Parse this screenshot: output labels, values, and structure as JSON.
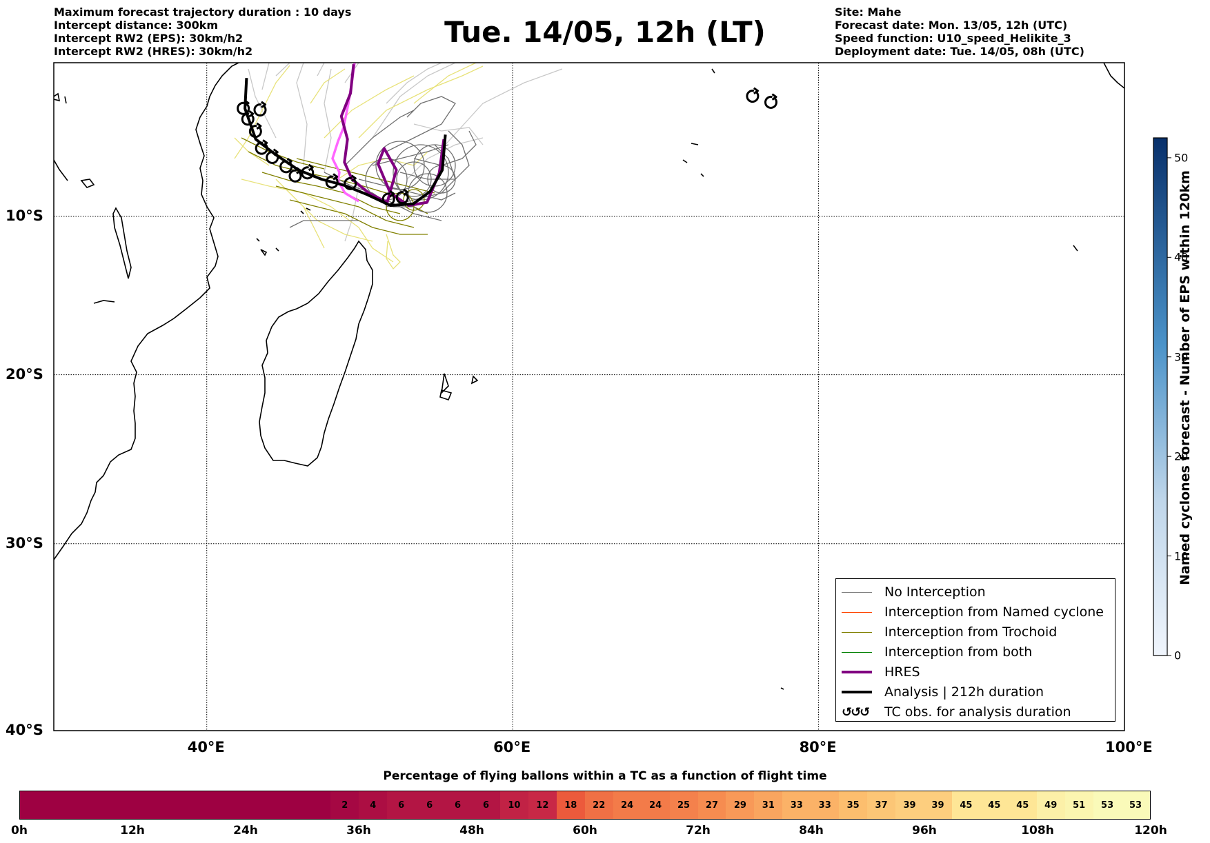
{
  "header_left": [
    "Maximum forecast trajectory duration : 10 days",
    "Intercept distance: 300km",
    "Intercept RW2 (EPS):  30km/h2",
    "Intercept RW2 (HRES): 30km/h2"
  ],
  "header_right": [
    "Site: Mahe",
    "Forecast date: Mon. 13/05, 12h (UTC)",
    "Speed function: U10_speed_Helikite_3",
    "Deployment date: Tue. 14/05, 08h (UTC)"
  ],
  "title": "Tue. 14/05, 12h (LT)",
  "map": {
    "lon_range": [
      30,
      100
    ],
    "lat_range": [
      -40,
      0
    ],
    "lon_ticks": [
      {
        "lon": 40,
        "label": "40°E"
      },
      {
        "lon": 60,
        "label": "60°E"
      },
      {
        "lon": 80,
        "label": "80°E"
      },
      {
        "lon": 100,
        "label": "100°E"
      }
    ],
    "lat_ticks": [
      {
        "lat": -10,
        "label": "10°S"
      },
      {
        "lat": -20,
        "label": "20°S"
      },
      {
        "lat": -30,
        "label": "30°S"
      },
      {
        "lat": -40,
        "label": "40°S"
      }
    ],
    "grid": true
  },
  "legend": {
    "items": [
      {
        "label": "No Interception",
        "color": "#808080",
        "width": 1.5
      },
      {
        "label": "Interception from Named cyclone",
        "color": "#ff4500",
        "width": 1.5
      },
      {
        "label": "Interception from Trochoid",
        "color": "#808000",
        "width": 1.5
      },
      {
        "label": "Interception from both",
        "color": "#008000",
        "width": 1.5
      },
      {
        "label": "HRES",
        "color": "#800080",
        "width": 4
      },
      {
        "label": "Analysis | 212h duration",
        "color": "#000000",
        "width": 4
      }
    ],
    "tc_obs_label": "TC obs. for analysis duration",
    "tc_obs_symbol": "↺↺↺"
  },
  "eps_colorbar": {
    "label": "Named cyclones forecast - Number of EPS within 120km",
    "ticks": [
      "0",
      "10",
      "20",
      "30",
      "40",
      "50"
    ],
    "range": [
      0,
      52
    ],
    "color_low": "#f0f5fc",
    "color_high": "#08306b"
  },
  "flight_colorbar": {
    "title": "Percentage of flying ballons within a TC as a function of flight time",
    "time_ticks": [
      "0h",
      "12h",
      "24h",
      "36h",
      "48h",
      "60h",
      "72h",
      "84h",
      "96h",
      "108h",
      "120h"
    ],
    "segments_hours": 3,
    "percentages": [
      0,
      0,
      0,
      0,
      0,
      0,
      0,
      0,
      0,
      0,
      0,
      2,
      4,
      6,
      6,
      6,
      6,
      10,
      12,
      18,
      22,
      24,
      24,
      25,
      27,
      29,
      31,
      33,
      33,
      35,
      37,
      39,
      39,
      45,
      45,
      45,
      49,
      51,
      53,
      53
    ]
  },
  "tracks": {
    "analysis": [
      [
        42.6,
        -1
      ],
      [
        42.5,
        -3
      ],
      [
        43.2,
        -5
      ],
      [
        44.5,
        -6
      ],
      [
        46,
        -7
      ],
      [
        47.5,
        -7.6
      ],
      [
        49,
        -8
      ],
      [
        50.5,
        -8.6
      ],
      [
        52,
        -9.3
      ],
      [
        53.5,
        -9.2
      ],
      [
        54.6,
        -8.4
      ],
      [
        55.4,
        -7
      ],
      [
        55.6,
        -4.7
      ]
    ],
    "hres": [
      [
        49.6,
        -0.1
      ],
      [
        49.4,
        -2
      ],
      [
        48.8,
        -3.5
      ],
      [
        49.2,
        -5
      ],
      [
        49,
        -6.5
      ],
      [
        49.5,
        -7.6
      ],
      [
        50.6,
        -8.5
      ],
      [
        51.8,
        -9.1
      ],
      [
        52.4,
        -7
      ],
      [
        51.6,
        -5.6
      ],
      [
        51.2,
        -6.6
      ],
      [
        52,
        -8.5
      ],
      [
        53.2,
        -9.3
      ],
      [
        54.4,
        -9.1
      ],
      [
        55.2,
        -7.2
      ],
      [
        55.5,
        -5
      ]
    ],
    "tc_obs": [
      [
        42.4,
        -3
      ],
      [
        42.7,
        -3.7
      ],
      [
        43.5,
        -3.1
      ],
      [
        43.2,
        -4.5
      ],
      [
        43.6,
        -5.6
      ],
      [
        44.3,
        -6.2
      ],
      [
        45.2,
        -6.8
      ],
      [
        45.8,
        -7.4
      ],
      [
        46.6,
        -7.2
      ],
      [
        48.2,
        -7.8
      ],
      [
        49.4,
        -7.9
      ],
      [
        51.9,
        -8.9
      ],
      [
        52.8,
        -8.8
      ],
      [
        75.7,
        -2.2
      ],
      [
        76.9,
        -2.6
      ]
    ]
  }
}
